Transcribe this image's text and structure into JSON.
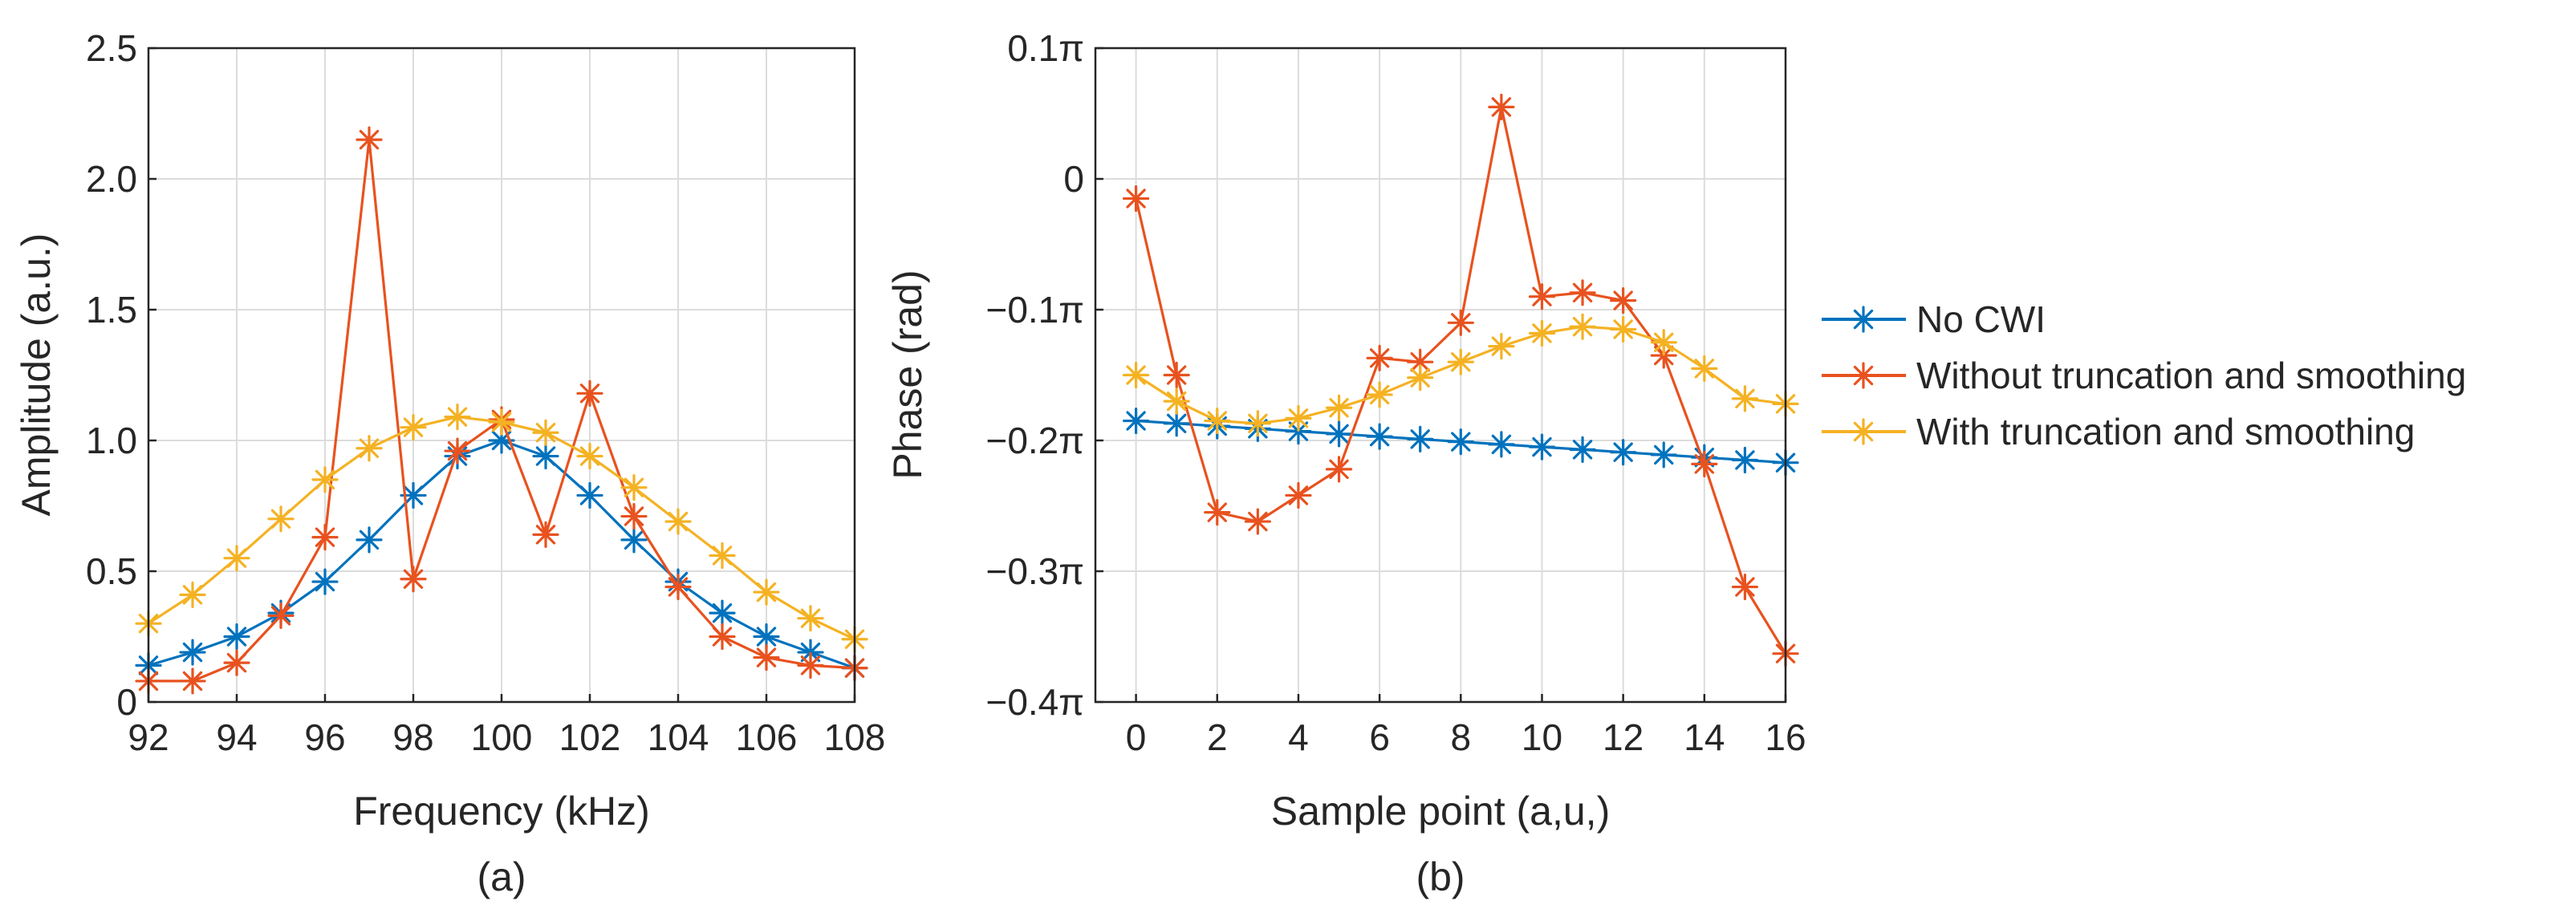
{
  "colors": {
    "no_cwi": "#0072BD",
    "without": "#E8521F",
    "with": "#F4B223",
    "axis": "#262626",
    "grid": "#dcdcdc"
  },
  "legend": {
    "placement": "right",
    "entries": [
      "No CWI",
      "Without truncation and smoothing",
      "With truncation and smoothing"
    ]
  },
  "chart_data": [
    {
      "type": "line",
      "panel": "(a)",
      "xlabel": "Frequency (kHz)",
      "ylabel": "Amplitude (a.u.)",
      "xlim": [
        92,
        108
      ],
      "ylim": [
        0,
        2.5
      ],
      "xticks": [
        92,
        94,
        96,
        98,
        100,
        102,
        104,
        106,
        108
      ],
      "xtick_labels": [
        "92",
        "94",
        "96",
        "98",
        "100",
        "102",
        "104",
        "106",
        "108"
      ],
      "yticks": [
        0,
        0.5,
        1.0,
        1.5,
        2.0,
        2.5
      ],
      "ytick_labels": [
        "0",
        "0.5",
        "1.0",
        "1.5",
        "2.0",
        "2.5"
      ],
      "grid": true,
      "marker": "asterisk",
      "x": [
        92,
        93,
        94,
        95,
        96,
        97,
        98,
        99,
        100,
        101,
        102,
        103,
        104,
        105,
        106,
        107,
        108
      ],
      "series": [
        {
          "name": "No CWI",
          "color_key": "no_cwi",
          "values": [
            0.14,
            0.19,
            0.25,
            0.34,
            0.46,
            0.62,
            0.79,
            0.94,
            1.0,
            0.94,
            0.79,
            0.62,
            0.46,
            0.34,
            0.25,
            0.19,
            0.13
          ]
        },
        {
          "name": "Without truncation and smoothing",
          "color_key": "without",
          "values": [
            0.08,
            0.08,
            0.15,
            0.33,
            0.63,
            2.15,
            0.47,
            0.96,
            1.08,
            0.64,
            1.18,
            0.71,
            0.44,
            0.25,
            0.17,
            0.14,
            0.13
          ]
        },
        {
          "name": "With truncation and smoothing",
          "color_key": "with",
          "values": [
            0.3,
            0.41,
            0.55,
            0.7,
            0.85,
            0.97,
            1.05,
            1.09,
            1.07,
            1.03,
            0.94,
            0.82,
            0.69,
            0.56,
            0.42,
            0.32,
            0.24
          ]
        }
      ]
    },
    {
      "type": "line",
      "panel": "(b)",
      "xlabel": "Sample point (a,u,)",
      "ylabel": "Phase (rad)",
      "xlim": [
        -1,
        16
      ],
      "ylim": [
        -0.4,
        0.1
      ],
      "y_unit": "π",
      "xticks": [
        0,
        2,
        4,
        6,
        8,
        10,
        12,
        14,
        16
      ],
      "xtick_labels": [
        "0",
        "2",
        "4",
        "6",
        "8",
        "10",
        "12",
        "14",
        "16"
      ],
      "yticks": [
        -0.4,
        -0.3,
        -0.2,
        -0.1,
        0,
        0.1
      ],
      "ytick_labels": [
        "−0.4π",
        "−0.3π",
        "−0.2π",
        "−0.1π",
        "0",
        "0.1π"
      ],
      "grid": true,
      "marker": "asterisk",
      "x": [
        0,
        1,
        2,
        3,
        4,
        5,
        6,
        7,
        8,
        9,
        10,
        11,
        12,
        13,
        14,
        15,
        16
      ],
      "series": [
        {
          "name": "No CWI",
          "color_key": "no_cwi",
          "values": [
            -0.185,
            -0.187,
            -0.189,
            -0.191,
            -0.193,
            -0.195,
            -0.197,
            -0.199,
            -0.201,
            -0.203,
            -0.205,
            -0.207,
            -0.209,
            -0.211,
            -0.213,
            -0.215,
            -0.217
          ]
        },
        {
          "name": "Without truncation and smoothing",
          "color_key": "without",
          "values": [
            -0.015,
            -0.15,
            -0.255,
            -0.262,
            -0.242,
            -0.222,
            -0.137,
            -0.14,
            -0.11,
            0.055,
            -0.09,
            -0.087,
            -0.093,
            -0.135,
            -0.218,
            -0.312,
            -0.363
          ]
        },
        {
          "name": "With truncation and smoothing",
          "color_key": "with",
          "values": [
            -0.15,
            -0.17,
            -0.185,
            -0.187,
            -0.183,
            -0.175,
            -0.165,
            -0.152,
            -0.14,
            -0.128,
            -0.118,
            -0.113,
            -0.115,
            -0.125,
            -0.145,
            -0.168,
            -0.172
          ]
        }
      ]
    }
  ]
}
